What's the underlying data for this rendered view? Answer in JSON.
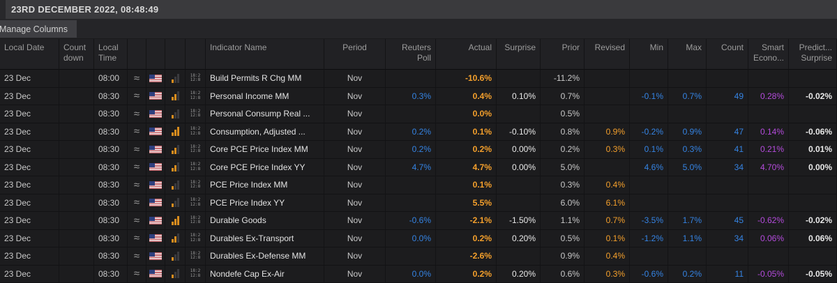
{
  "titlebar": {
    "datetime": "23RD DECEMBER 2022, 08:48:49"
  },
  "toolbar": {
    "manage_columns_label": "Manage Columns"
  },
  "icons": {
    "approx": "≈",
    "flag": "us-flag",
    "calendar_line1": "18:2",
    "calendar_line2": "12:8"
  },
  "colors": {
    "orange": "#f5a02c",
    "blue": "#3584e4",
    "purple": "#b44bdc",
    "white": "#e9e9e9",
    "gray": "#c9c9c9",
    "name": "#e2e2e2",
    "bar_on": "#d88c1e",
    "bar_off": "#3a3a3e"
  },
  "table": {
    "columns": [
      {
        "key": "date",
        "label": "Local Date",
        "width": 85,
        "align": "left",
        "color": "gray",
        "type": "text"
      },
      {
        "key": "countdown",
        "label": "Count\ndown",
        "width": 50,
        "align": "left",
        "color": "gray",
        "type": "text"
      },
      {
        "key": "time",
        "label": "Local\nTime",
        "width": 48,
        "align": "left",
        "color": "gray",
        "type": "text"
      },
      {
        "key": "approx",
        "label": "",
        "width": 27,
        "align": "center",
        "color": "gray",
        "type": "approx"
      },
      {
        "key": "flag",
        "label": "",
        "width": 27,
        "align": "center",
        "color": "gray",
        "type": "flag"
      },
      {
        "key": "importance",
        "label": "",
        "width": 29,
        "align": "center",
        "color": "gray",
        "type": "importance"
      },
      {
        "key": "calicon",
        "label": "",
        "width": 29,
        "align": "center",
        "color": "gray",
        "type": "calicon"
      },
      {
        "key": "name",
        "label": "Indicator Name",
        "width": 170,
        "align": "left",
        "color": "name",
        "type": "text"
      },
      {
        "key": "period",
        "label": "Period",
        "width": 88,
        "align": "center",
        "color": "gray",
        "type": "text"
      },
      {
        "key": "poll",
        "label": "Reuters\nPoll",
        "width": 72,
        "align": "right",
        "color": "blue",
        "type": "text"
      },
      {
        "key": "actual",
        "label": "Actual",
        "width": 87,
        "align": "right",
        "color": "orange",
        "bold": true,
        "type": "text"
      },
      {
        "key": "surprise",
        "label": "Surprise",
        "width": 63,
        "align": "right",
        "color": "white",
        "type": "text"
      },
      {
        "key": "prior",
        "label": "Prior",
        "width": 63,
        "align": "right",
        "color": "gray",
        "type": "text"
      },
      {
        "key": "revised",
        "label": "Revised",
        "width": 65,
        "align": "right",
        "color": "orange",
        "type": "text"
      },
      {
        "key": "min",
        "label": "Min",
        "width": 55,
        "align": "right",
        "color": "blue",
        "type": "text"
      },
      {
        "key": "max",
        "label": "Max",
        "width": 55,
        "align": "right",
        "color": "blue",
        "type": "text"
      },
      {
        "key": "count",
        "label": "Count",
        "width": 60,
        "align": "right",
        "color": "blue",
        "type": "text"
      },
      {
        "key": "smart",
        "label": "Smart\nEcono...",
        "width": 58,
        "align": "right",
        "color": "purple",
        "type": "text"
      },
      {
        "key": "predict",
        "label": "Predict...\nSurprise",
        "width": 69,
        "align": "right",
        "color": "white",
        "bold": true,
        "type": "text"
      }
    ],
    "rows": [
      {
        "date": "23 Dec",
        "countdown": "",
        "time": "08:00",
        "importance": 1,
        "name": "Build Permits R Chg MM",
        "period": "Nov",
        "poll": "",
        "actual": "-10.6%",
        "surprise": "",
        "prior": "-11.2%",
        "revised": "",
        "min": "",
        "max": "",
        "count": "",
        "smart": "",
        "predict": ""
      },
      {
        "date": "23 Dec",
        "countdown": "",
        "time": "08:30",
        "importance": 2,
        "name": "Personal Income MM",
        "period": "Nov",
        "poll": "0.3%",
        "actual": "0.4%",
        "surprise": "0.10%",
        "prior": "0.7%",
        "revised": "",
        "min": "-0.1%",
        "max": "0.7%",
        "count": "49",
        "smart": "0.28%",
        "predict": "-0.02%"
      },
      {
        "date": "23 Dec",
        "countdown": "",
        "time": "08:30",
        "importance": 1,
        "name": "Personal Consump Real ...",
        "period": "Nov",
        "poll": "",
        "actual": "0.0%",
        "surprise": "",
        "prior": "0.5%",
        "revised": "",
        "min": "",
        "max": "",
        "count": "",
        "smart": "",
        "predict": ""
      },
      {
        "date": "23 Dec",
        "countdown": "",
        "time": "08:30",
        "importance": 3,
        "name": "Consumption, Adjusted ...",
        "period": "Nov",
        "poll": "0.2%",
        "actual": "0.1%",
        "surprise": "-0.10%",
        "prior": "0.8%",
        "revised": "0.9%",
        "min": "-0.2%",
        "max": "0.9%",
        "count": "47",
        "smart": "0.14%",
        "predict": "-0.06%"
      },
      {
        "date": "23 Dec",
        "countdown": "",
        "time": "08:30",
        "importance": 2,
        "name": "Core PCE Price Index MM",
        "period": "Nov",
        "poll": "0.2%",
        "actual": "0.2%",
        "surprise": "0.00%",
        "prior": "0.2%",
        "revised": "0.3%",
        "min": "0.1%",
        "max": "0.3%",
        "count": "41",
        "smart": "0.21%",
        "predict": "0.01%"
      },
      {
        "date": "23 Dec",
        "countdown": "",
        "time": "08:30",
        "importance": 2,
        "name": "Core PCE Price Index YY",
        "period": "Nov",
        "poll": "4.7%",
        "actual": "4.7%",
        "surprise": "0.00%",
        "prior": "5.0%",
        "revised": "",
        "min": "4.6%",
        "max": "5.0%",
        "count": "34",
        "smart": "4.70%",
        "predict": "0.00%"
      },
      {
        "date": "23 Dec",
        "countdown": "",
        "time": "08:30",
        "importance": 1,
        "name": "PCE Price Index MM",
        "period": "Nov",
        "poll": "",
        "actual": "0.1%",
        "surprise": "",
        "prior": "0.3%",
        "revised": "0.4%",
        "min": "",
        "max": "",
        "count": "",
        "smart": "",
        "predict": ""
      },
      {
        "date": "23 Dec",
        "countdown": "",
        "time": "08:30",
        "importance": 1,
        "name": "PCE Price Index YY",
        "period": "Nov",
        "poll": "",
        "actual": "5.5%",
        "surprise": "",
        "prior": "6.0%",
        "revised": "6.1%",
        "min": "",
        "max": "",
        "count": "",
        "smart": "",
        "predict": ""
      },
      {
        "date": "23 Dec",
        "countdown": "",
        "time": "08:30",
        "importance": 3,
        "name": "Durable Goods",
        "period": "Nov",
        "poll": "-0.6%",
        "actual": "-2.1%",
        "surprise": "-1.50%",
        "prior": "1.1%",
        "revised": "0.7%",
        "min": "-3.5%",
        "max": "1.7%",
        "count": "45",
        "smart": "-0.62%",
        "predict": "-0.02%"
      },
      {
        "date": "23 Dec",
        "countdown": "",
        "time": "08:30",
        "importance": 2,
        "name": "Durables Ex-Transport",
        "period": "Nov",
        "poll": "0.0%",
        "actual": "0.2%",
        "surprise": "0.20%",
        "prior": "0.5%",
        "revised": "0.1%",
        "min": "-1.2%",
        "max": "1.1%",
        "count": "34",
        "smart": "0.06%",
        "predict": "0.06%"
      },
      {
        "date": "23 Dec",
        "countdown": "",
        "time": "08:30",
        "importance": 1,
        "name": "Durables Ex-Defense MM",
        "period": "Nov",
        "poll": "",
        "actual": "-2.6%",
        "surprise": "",
        "prior": "0.9%",
        "revised": "0.4%",
        "min": "",
        "max": "",
        "count": "",
        "smart": "",
        "predict": ""
      },
      {
        "date": "23 Dec",
        "countdown": "",
        "time": "08:30",
        "importance": 1,
        "name": "Nondefe Cap Ex-Air",
        "period": "Nov",
        "poll": "0.0%",
        "actual": "0.2%",
        "surprise": "0.20%",
        "prior": "0.6%",
        "revised": "0.3%",
        "min": "-0.6%",
        "max": "0.2%",
        "count": "11",
        "smart": "-0.05%",
        "predict": "-0.05%"
      }
    ]
  }
}
